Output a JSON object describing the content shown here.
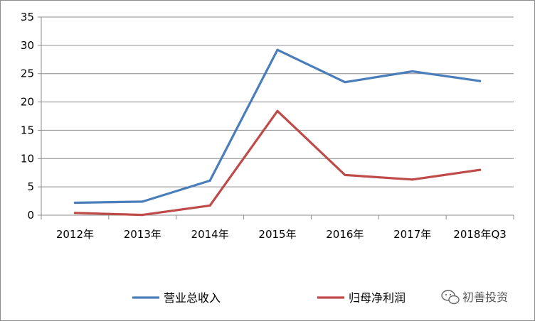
{
  "chart_data": {
    "type": "line",
    "categories": [
      "2012年",
      "2013年",
      "2014年",
      "2015年",
      "2016年",
      "2017年",
      "2018年Q3"
    ],
    "series": [
      {
        "name": "营业总收入",
        "color": "#4A7EBB",
        "values": [
          2.2,
          2.4,
          6.1,
          29.2,
          23.5,
          25.4,
          23.7
        ]
      },
      {
        "name": "归母净利润",
        "color": "#BE4B48",
        "values": [
          0.4,
          0.05,
          1.7,
          18.4,
          7.1,
          6.3,
          8.0
        ]
      }
    ],
    "title": "",
    "xlabel": "",
    "ylabel": "",
    "ylim": [
      0,
      35
    ],
    "yticks": [
      "0",
      "5",
      "10",
      "15",
      "20",
      "25",
      "30",
      "35"
    ],
    "grid": true,
    "legend_position": "bottom"
  },
  "watermark": {
    "text": "初善投资",
    "icon": "wechat-icon"
  }
}
